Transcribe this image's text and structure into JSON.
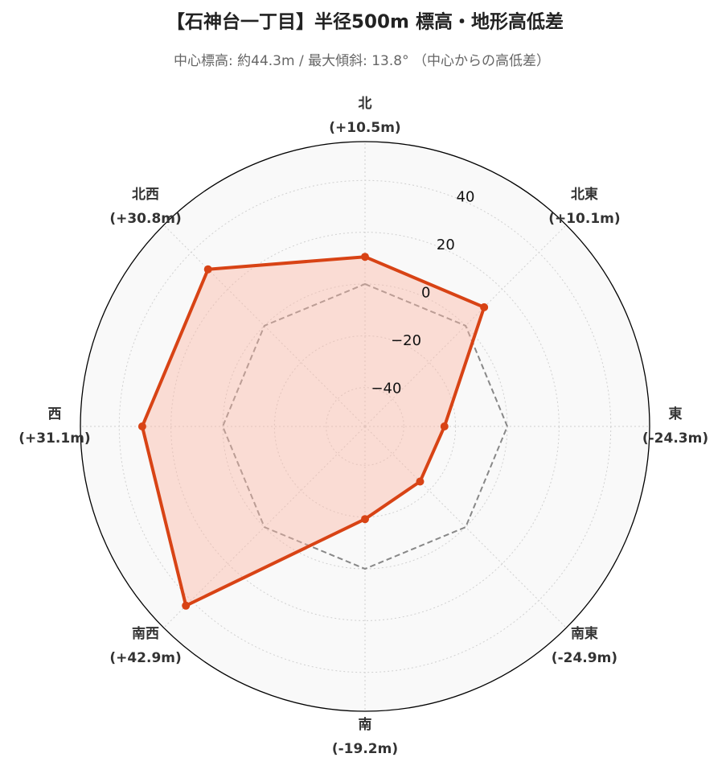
{
  "chart_data": {
    "type": "radar",
    "title": "【石神台一丁目】半径500m 標高・地形高低差",
    "subtitle": "中心標高: 約44.3m / 最大傾斜: 13.8° （中心からの高低差）",
    "categories": [
      "北",
      "北東",
      "東",
      "南東",
      "南",
      "南西",
      "西",
      "北西"
    ],
    "values": [
      10.5,
      10.1,
      -24.3,
      -24.9,
      -19.2,
      42.9,
      31.1,
      30.8
    ],
    "value_labels": [
      "(+10.5m)",
      "(+10.1m)",
      "(-24.3m)",
      "(-24.9m)",
      "(-19.2m)",
      "(+42.9m)",
      "(+31.1m)",
      "(+30.8m)"
    ],
    "color": "#d84315",
    "fill_color": "#fbb9a6",
    "reference_line": 0,
    "ylim": [
      -55,
      55
    ],
    "yticks": [
      {
        "value": -40,
        "label": "−40"
      },
      {
        "value": -20,
        "label": "−20"
      },
      0,
      20,
      40
    ],
    "grid": true
  }
}
